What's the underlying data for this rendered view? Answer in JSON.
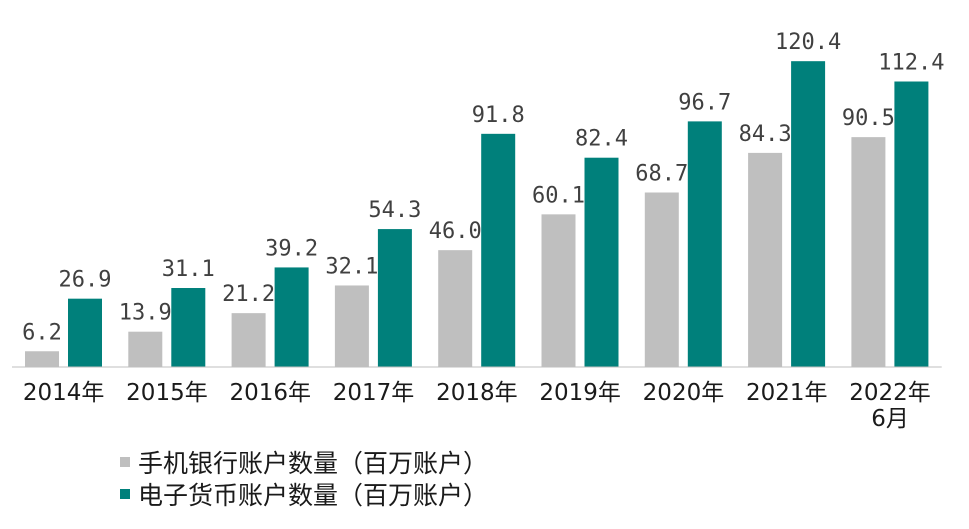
{
  "chart_data": {
    "type": "bar",
    "categories": [
      "2014年",
      "2015年",
      "2016年",
      "2017年",
      "2018年",
      "2019年",
      "2020年",
      "2021年",
      "2022年\n6月"
    ],
    "series": [
      {
        "name": "手机银行账户数量（百万账户）",
        "values": [
          6.2,
          13.9,
          21.2,
          32.1,
          46.0,
          60.1,
          68.7,
          84.3,
          90.5
        ],
        "color": "#bfbfbf"
      },
      {
        "name": "电子货币账户数量（百万账户）",
        "values": [
          26.9,
          31.1,
          39.2,
          54.3,
          91.8,
          82.4,
          96.7,
          120.4,
          112.4
        ],
        "color": "#00807b"
      }
    ],
    "ylim": [
      0,
      140
    ],
    "grid": false,
    "data_labels": true,
    "legend": "bottom-left"
  }
}
